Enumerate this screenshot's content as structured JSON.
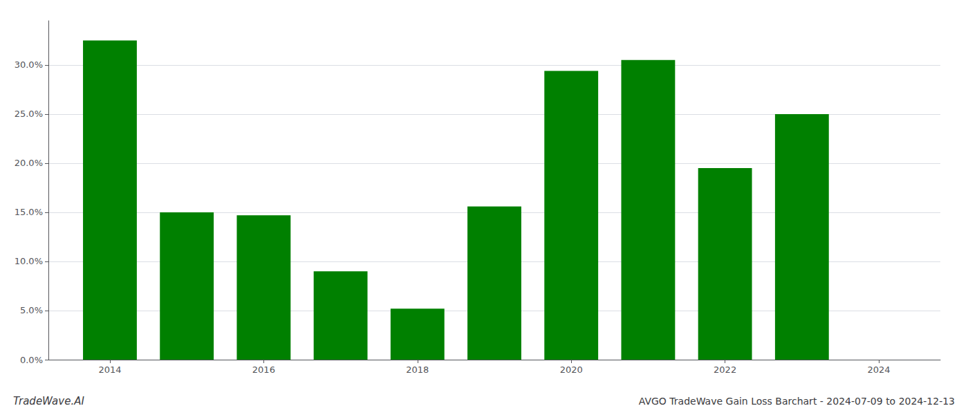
{
  "chart_data": {
    "type": "bar",
    "title": "AVGO TradeWave Gain Loss Barchart - 2024-07-09 to 2024-12-13",
    "annotations": [
      "TradeWave.AI"
    ],
    "x": [
      2014,
      2015,
      2016,
      2017,
      2018,
      2019,
      2020,
      2021,
      2022,
      2023,
      2024
    ],
    "values": [
      0.325,
      0.15,
      0.147,
      0.09,
      0.052,
      0.156,
      0.294,
      0.305,
      0.195,
      0.25,
      0.0
    ],
    "color": "#008000",
    "xlim": [
      2013.2,
      2024.8
    ],
    "xticks": [
      2014,
      2016,
      2018,
      2020,
      2022,
      2024
    ],
    "ylim": [
      0,
      0.345
    ],
    "yticks": [
      {
        "value": 0.0,
        "label": "0.0%"
      },
      {
        "value": 0.05,
        "label": "5.0%"
      },
      {
        "value": 0.1,
        "label": "10.0%"
      },
      {
        "value": 0.15,
        "label": "15.0%"
      },
      {
        "value": 0.2,
        "label": "20.0%"
      },
      {
        "value": 0.25,
        "label": "25.0%"
      },
      {
        "value": 0.3,
        "label": "30.0%"
      }
    ],
    "grid": true
  }
}
